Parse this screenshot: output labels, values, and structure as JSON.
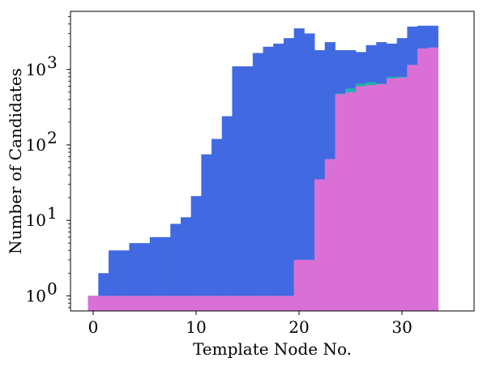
{
  "chart_data": {
    "type": "bar",
    "xlabel": "Template Node No.",
    "ylabel": "Number of Candidates",
    "xlim": [
      -2.2,
      37
    ],
    "ylim_log10": [
      -0.2,
      3.77
    ],
    "yscale": "log",
    "x_ticks": [
      0,
      10,
      20,
      30
    ],
    "y_ticks": [
      {
        "exp": "0",
        "value": 1
      },
      {
        "exp": "1",
        "value": 10
      },
      {
        "exp": "2",
        "value": 100
      },
      {
        "exp": "3",
        "value": 1000
      }
    ],
    "grid": false,
    "legend": "none",
    "series": [
      {
        "color": "#4169e1",
        "values": [
          1,
          2,
          4,
          4,
          5,
          5,
          6,
          6,
          9,
          11,
          21,
          75,
          120,
          240,
          1100,
          1100,
          1650,
          2000,
          2200,
          2600,
          3500,
          3000,
          1800,
          2300,
          1800,
          1800,
          1700,
          2100,
          2300,
          2200,
          2600,
          3700,
          3800,
          3800
        ]
      },
      {
        "color": "#20b2aa",
        "values": [
          1,
          1,
          1,
          1,
          1,
          1,
          1,
          1,
          1,
          1,
          1,
          1,
          1,
          1,
          1,
          1,
          1,
          1,
          1,
          1,
          3,
          3,
          35,
          65,
          480,
          560,
          650,
          680,
          650,
          800,
          800,
          1150,
          1900,
          1950
        ]
      },
      {
        "color": "#da70d6",
        "values": [
          1,
          1,
          1,
          1,
          1,
          1,
          1,
          1,
          1,
          1,
          1,
          1,
          1,
          1,
          1,
          1,
          1,
          1,
          1,
          1,
          3,
          3,
          35,
          65,
          470,
          500,
          600,
          620,
          640,
          760,
          780,
          1150,
          1900,
          1950
        ]
      }
    ],
    "x_start": -0.5,
    "bin_width": 1
  }
}
